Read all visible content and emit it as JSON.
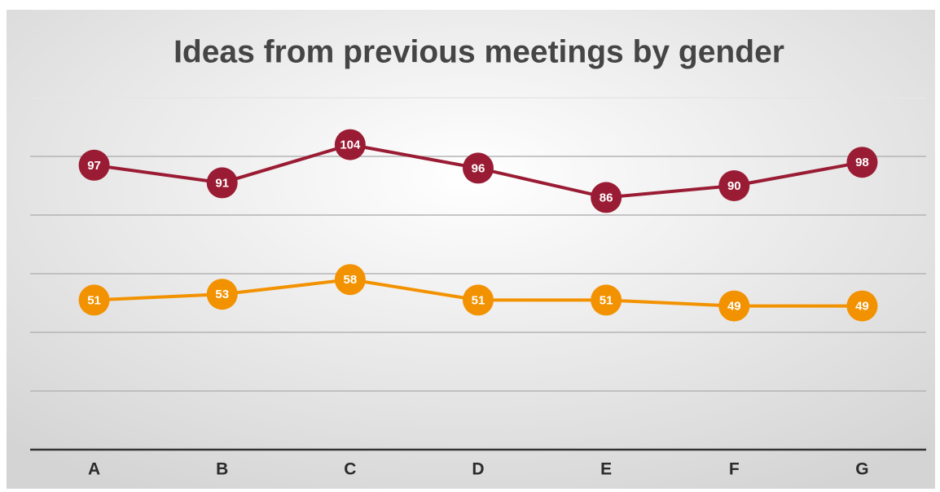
{
  "chart_data": {
    "type": "line",
    "title": "Ideas from previous meetings by gender",
    "categories": [
      "A",
      "B",
      "C",
      "D",
      "E",
      "F",
      "G"
    ],
    "series": [
      {
        "color": "#9a1c34",
        "values": [
          97,
          91,
          104,
          96,
          86,
          90,
          98
        ]
      },
      {
        "color": "#f39200",
        "values": [
          51,
          53,
          58,
          51,
          51,
          49,
          49
        ]
      }
    ],
    "ylim": [
      0,
      120
    ],
    "yticks": [
      0,
      20,
      40,
      60,
      80,
      100,
      120
    ],
    "grid": true
  }
}
